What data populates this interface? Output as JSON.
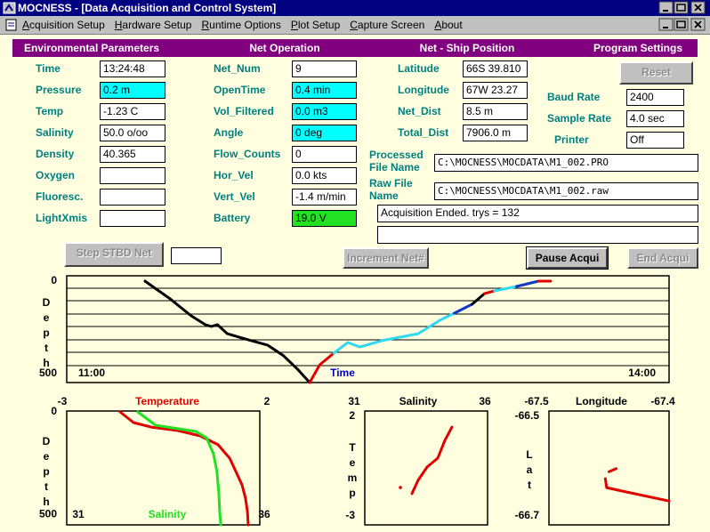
{
  "window": {
    "title": "MOCNESS - [Data Acquisition and Control System]",
    "menu": [
      "Acquisition Setup",
      "Hardware Setup",
      "Runtime Options",
      "Plot Setup",
      "Capture Screen",
      "About"
    ]
  },
  "sections": [
    "Environmental Parameters",
    "Net Operation",
    "Net - Ship Position",
    "Program Settings"
  ],
  "environmental": [
    {
      "label": "Time",
      "value": "13:24:48"
    },
    {
      "label": "Pressure",
      "value": "0.2 m",
      "color": "#00ffff"
    },
    {
      "label": "Temp",
      "value": "-1.23 C"
    },
    {
      "label": "Salinity",
      "value": "50.0 o/oo"
    },
    {
      "label": "Density",
      "value": "40.365"
    },
    {
      "label": "Oxygen"
    },
    {
      "label": "Fluoresc."
    },
    {
      "label": "LightXmis"
    }
  ],
  "net_operation": [
    {
      "label": "Net_Num",
      "value": "9"
    },
    {
      "label": "OpenTime",
      "value": "0.4 min",
      "color": "#00ffff"
    },
    {
      "label": "Vol_Filtered",
      "value": "0.0 m3",
      "color": "#00ffff"
    },
    {
      "label": "Angle",
      "value": "0 deg",
      "color": "#00ffff"
    },
    {
      "label": "Flow_Counts",
      "value": "0"
    },
    {
      "label": "Hor_Vel",
      "value": "0.0 kts"
    },
    {
      "label": "Vert_Vel",
      "value": "-1.4 m/min"
    },
    {
      "label": "Battery",
      "value": "19.0 V",
      "color": "#22e022"
    }
  ],
  "position": [
    {
      "label": "Latitude",
      "value": "66S 39.810"
    },
    {
      "label": "Longitude",
      "value": "67W 23.27"
    },
    {
      "label": "Net_Dist",
      "value": "8.5 m"
    },
    {
      "label": "Total_Dist",
      "value": "7906.0 m"
    }
  ],
  "program_settings": {
    "reset": {
      "label": "Reset",
      "enabled": false
    },
    "fields": [
      {
        "label": "Baud Rate",
        "value": "2400"
      },
      {
        "label": "Sample Rate",
        "value": "4.0 sec"
      },
      {
        "label": "Printer",
        "value": "Off"
      }
    ]
  },
  "files": [
    {
      "label": "Processed File Name",
      "value": "C:\\MOCNESS\\MOCDATA\\M1_002.PRO"
    },
    {
      "label": "Raw File Name",
      "value": "C:\\MOCNESS\\MOCDATA\\M1_002.raw"
    }
  ],
  "status": "Acquisition Ended. trys = 132",
  "buttons": [
    {
      "label": "Step STBD Net",
      "enabled": false
    },
    {
      "label": "Increment Net#",
      "enabled": false
    },
    {
      "label": "Pause Acqui",
      "enabled": true
    },
    {
      "label": "End Acqui",
      "enabled": false
    }
  ],
  "plots": {
    "depth_time": {
      "xlabel": "Time",
      "ylabel": "Depth",
      "invert_y": true,
      "xlim": [
        11,
        14
      ],
      "xticks": [
        {
          "value": 11,
          "label": "11:00"
        },
        {
          "value": 14,
          "label": "14:00"
        }
      ],
      "ylim": [
        0,
        550
      ],
      "yticks": [
        0,
        500
      ],
      "series": [
        {
          "color": "#000000",
          "x": [
            11.39,
            11.51,
            11.62,
            11.69,
            11.72,
            11.75,
            11.8,
            11.89,
            12.0,
            12.08,
            12.15,
            12.21
          ],
          "y": [
            0,
            92,
            188,
            236,
            246,
            236,
            285,
            314,
            347,
            405,
            478,
            550
          ]
        },
        {
          "color": "#e00000",
          "x": [
            12.21,
            12.26,
            12.33
          ],
          "y": [
            550,
            454,
            391
          ]
        },
        {
          "color": "#30d8f0",
          "x": [
            12.33,
            12.4,
            12.46,
            12.57,
            12.75,
            12.86,
            12.93
          ],
          "y": [
            391,
            333,
            357,
            323,
            285,
            212,
            174
          ]
        },
        {
          "color": "#1038c0",
          "x": [
            12.93,
            13.02
          ],
          "y": [
            174,
            125
          ]
        },
        {
          "color": "#000000",
          "x": [
            13.02,
            13.08
          ],
          "y": [
            125,
            68
          ]
        },
        {
          "color": "#e00000",
          "x": [
            13.08,
            13.13
          ],
          "y": [
            68,
            53
          ]
        },
        {
          "color": "#30d8f0",
          "x": [
            13.13,
            13.24
          ],
          "y": [
            53,
            29
          ]
        },
        {
          "color": "#1038c0",
          "x": [
            13.24,
            13.35
          ],
          "y": [
            29,
            0
          ]
        },
        {
          "color": "#e00000",
          "x": [
            13.35,
            13.41
          ],
          "y": [
            0,
            0
          ]
        }
      ]
    },
    "profile": {
      "ylabel": "Depth",
      "invert_y": true,
      "xlim": [
        -3,
        2
      ],
      "xticks": [
        -3,
        2
      ],
      "x2lim": [
        31,
        36
      ],
      "x2ticks": [
        31,
        36
      ],
      "ylim": [
        0,
        550
      ],
      "yticks": [
        0,
        500
      ],
      "series": [
        {
          "name": "Temperature",
          "color": "#e00000",
          "x": [
            -1.62,
            -1.27,
            -0.81,
            -0.12,
            0.46,
            0.92,
            1.22,
            1.38,
            1.54,
            1.63,
            1.68,
            1.7
          ],
          "y": [
            0,
            52,
            74,
            91,
            117,
            160,
            225,
            290,
            355,
            420,
            485,
            550
          ]
        },
        {
          "name": "Salinity",
          "color": "#22e022",
          "axis": "x2",
          "x": [
            32.84,
            33.3,
            33.88,
            34.34,
            34.62,
            34.8,
            34.89,
            34.94,
            34.96,
            34.99
          ],
          "y": [
            0,
            65,
            82,
            95,
            126,
            204,
            290,
            398,
            485,
            550
          ]
        }
      ]
    },
    "ts": {
      "xlabel": "Salinity",
      "ylabel": "Temp",
      "xlim": [
        31,
        36
      ],
      "xticks": [
        31,
        36
      ],
      "ylim": [
        -3,
        2
      ],
      "yticks": [
        2,
        -3
      ],
      "series": [
        {
          "color": "#e00000",
          "style": "points",
          "x": [
            32.45
          ],
          "y": [
            -1.57
          ]
        },
        {
          "color": "#e00000",
          "x": [
            32.92,
            33.17,
            33.54,
            33.97,
            34.26,
            34.55
          ],
          "y": [
            -1.88,
            -1.21,
            -0.54,
            -0.1,
            0.79,
            1.46
          ]
        }
      ]
    },
    "track": {
      "xlabel": "Longitude",
      "ylabel": "Lat",
      "xlim": [
        -67.5,
        -67.4
      ],
      "xticks": [
        -67.5,
        -67.4
      ],
      "ylim": [
        -66.7,
        -66.5
      ],
      "yticks": [
        -66.5,
        -66.7
      ],
      "series": [
        {
          "color": "#e00000",
          "x": [
            -67.444,
            -67.45
          ],
          "y": [
            -66.605,
            -66.611
          ]
        },
        {
          "color": "#e00000",
          "x": [
            -67.453,
            -67.452,
            -67.439,
            -67.4
          ],
          "y": [
            -66.625,
            -66.643,
            -66.65,
            -66.67
          ]
        }
      ]
    }
  }
}
